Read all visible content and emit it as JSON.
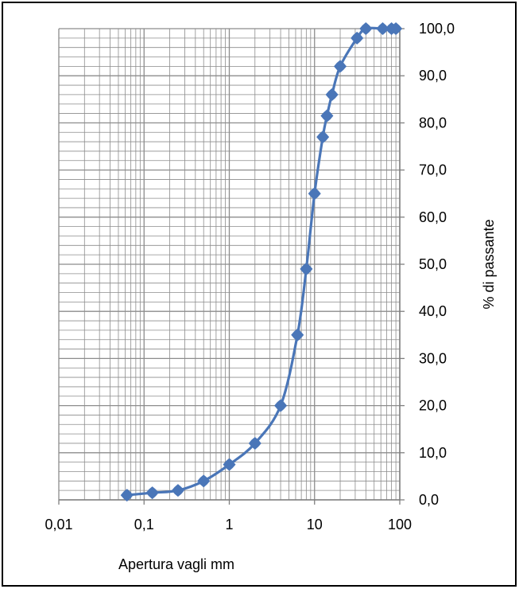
{
  "chart_data": {
    "type": "line",
    "x_scale": "log",
    "x_ticks": [
      0.01,
      0.1,
      1,
      10,
      100
    ],
    "x_tick_labels": [
      "0,01",
      "0,1",
      "1",
      "10",
      "100"
    ],
    "y_ticks": [
      0,
      10,
      20,
      30,
      40,
      50,
      60,
      70,
      80,
      90,
      100
    ],
    "y_tick_labels": [
      "0,0",
      "10,0",
      "20,0",
      "30,0",
      "40,0",
      "50,0",
      "60,0",
      "70,0",
      "80,0",
      "90,0",
      "100,0"
    ],
    "xlim": [
      0.01,
      100
    ],
    "ylim": [
      0,
      100
    ],
    "xlabel": "Apertura  vagli mm",
    "ylabel": "% di passante",
    "grid": true,
    "y_axis_side": "right",
    "series_color": "#4a76b8",
    "grid_color": "#8c8c8c",
    "series": [
      {
        "x": [
          0.063,
          0.125,
          0.25,
          0.5,
          1,
          2,
          4,
          6.3,
          8,
          10,
          12.5,
          14,
          16,
          20,
          31.5,
          40,
          63,
          80,
          90
        ],
        "y": [
          1.0,
          1.5,
          2.0,
          4.0,
          7.5,
          12.0,
          20.0,
          35.0,
          49.0,
          65.0,
          77.0,
          81.5,
          86.0,
          92.0,
          98.0,
          100.0,
          100.0,
          100.0,
          100.0
        ]
      }
    ]
  }
}
